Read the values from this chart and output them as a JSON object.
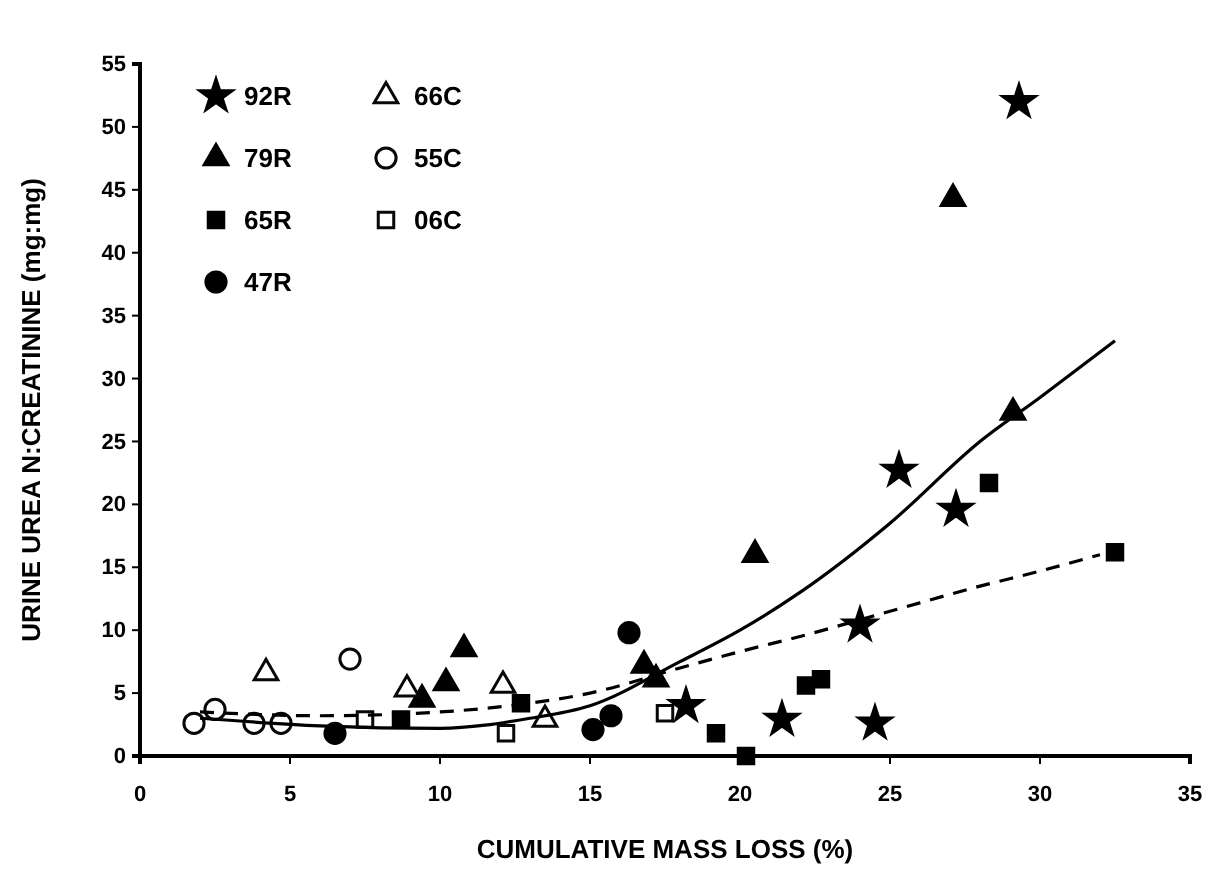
{
  "chart_data": {
    "type": "scatter",
    "xlabel": "CUMULATIVE MASS LOSS (%)",
    "ylabel": "URINE UREA N:CREATININE (mg:mg)",
    "xlim": [
      0,
      35
    ],
    "ylim": [
      0,
      55
    ],
    "xticks": [
      0,
      5,
      10,
      15,
      20,
      25,
      30,
      35
    ],
    "yticks": [
      0,
      5,
      10,
      15,
      20,
      25,
      30,
      35,
      40,
      45,
      50,
      55
    ],
    "legend": "top left",
    "grid": false,
    "series": [
      {
        "name": "92R",
        "color": "#000000",
        "marker": "star",
        "x": [
          29.3,
          25.3,
          27.2,
          24.0,
          24.5,
          18.2,
          21.4
        ],
        "values": [
          52,
          22.7,
          19.6,
          10.4,
          2.6,
          4,
          2.9
        ]
      },
      {
        "name": "79R",
        "color": "#000000",
        "marker": "triangle",
        "x": [
          27.1,
          29.1,
          20.5,
          10.8,
          10.2,
          16.8,
          17.2,
          9.4
        ],
        "values": [
          44.3,
          27.3,
          16,
          8.5,
          5.8,
          7.2,
          6.1,
          4.5
        ]
      },
      {
        "name": "65R",
        "color": "#000000",
        "marker": "square",
        "x": [
          8.7,
          19.2,
          20.2,
          22.2,
          22.7,
          28.3,
          32.5,
          12.7
        ],
        "values": [
          2.9,
          1.8,
          0,
          5.6,
          6.1,
          21.7,
          16.2,
          4.2
        ]
      },
      {
        "name": "47R",
        "color": "#000000",
        "marker": "circle",
        "x": [
          6.5,
          16.3,
          15.1,
          15.7
        ],
        "values": [
          1.8,
          9.8,
          2.1,
          3.2
        ]
      },
      {
        "name": "66C",
        "color": "#ffffff",
        "marker": "triangle",
        "x": [
          4.2,
          8.9,
          12.1,
          13.5
        ],
        "values": [
          6.6,
          5.3,
          5.6,
          2.9
        ]
      },
      {
        "name": "55C",
        "color": "#ffffff",
        "marker": "circle",
        "x": [
          7,
          1.8,
          2.5,
          3.8,
          4.7
        ],
        "values": [
          7.7,
          2.6,
          3.7,
          2.6,
          2.6
        ]
      },
      {
        "name": "06C",
        "color": "#ffffff",
        "marker": "square",
        "x": [
          7.5,
          12.2,
          17.5
        ],
        "values": [
          2.9,
          1.8,
          3.4
        ]
      },
      {
        "type": "line",
        "color": "#000000",
        "line_style": "solid",
        "marker": "none",
        "x": [
          2,
          6,
          10,
          13,
          15,
          18,
          20,
          22,
          25,
          28,
          30,
          32.5
        ],
        "values": [
          3,
          2.4,
          2.2,
          3,
          4,
          7.5,
          10,
          13,
          18.5,
          25,
          28.5,
          33
        ]
      },
      {
        "type": "line",
        "color": "#000000",
        "line_style": "dashed",
        "marker": "none",
        "x": [
          2,
          6,
          10,
          13,
          15,
          18,
          20,
          22,
          25,
          28,
          30,
          32
        ],
        "values": [
          3.5,
          3.2,
          3.5,
          4.2,
          5,
          7,
          8.3,
          9.5,
          11.5,
          13.5,
          14.7,
          16
        ]
      }
    ]
  }
}
